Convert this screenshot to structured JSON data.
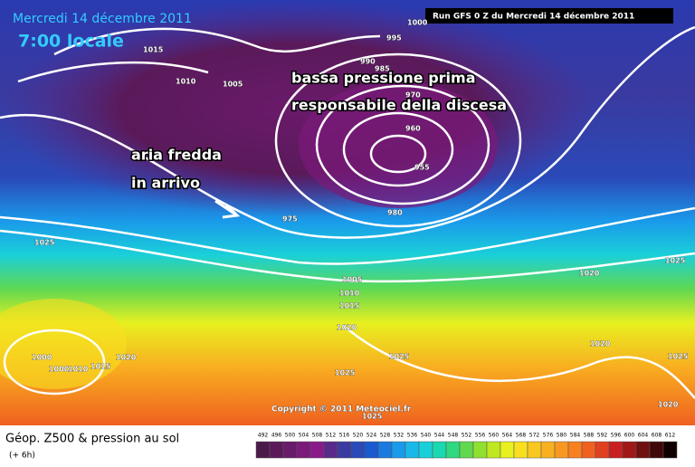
{
  "header": {
    "date": "Mercredi 14 décembre 2011",
    "time": "7:00 locale",
    "run": "Run GFS 0 Z du Mercredi 14 décembre 2011"
  },
  "annotations": [
    "bassa pressione prima",
    "responsabile della discesa",
    "aria fredda",
    "in arrivo"
  ],
  "isobar_labels": [
    "1000",
    "995",
    "1015",
    "990",
    "985",
    "1010",
    "1005",
    "970",
    "960",
    "955",
    "975",
    "980",
    "1025",
    "1005",
    "1010",
    "1015",
    "1020",
    "1020",
    "1025",
    "1020",
    "1025",
    "1000",
    "1000",
    "1010",
    "1015",
    "1020",
    "1025",
    "1025",
    "1025",
    "1020"
  ],
  "copyright": "Copyright © 2011 Meteociel.fr",
  "footer": {
    "title": "Géop. Z500 & pression au sol",
    "step": "(+ 6h)"
  },
  "legend": {
    "labels": [
      "492",
      "496",
      "500",
      "504",
      "508",
      "512",
      "516",
      "520",
      "524",
      "528",
      "532",
      "536",
      "540",
      "544",
      "548",
      "552",
      "556",
      "560",
      "564",
      "568",
      "572",
      "576",
      "580",
      "584",
      "588",
      "592",
      "596",
      "600",
      "604",
      "608",
      "612"
    ],
    "colors": [
      "#4a1a4a",
      "#5a1a5a",
      "#6a1a6a",
      "#7a1a7a",
      "#8a1a8a",
      "#5a2a8a",
      "#3a3aa0",
      "#2a4ab8",
      "#1a5ad0",
      "#1a7ae0",
      "#1a9aea",
      "#1ab8ea",
      "#1ad0d8",
      "#1ad8b0",
      "#30d880",
      "#60d850",
      "#90e030",
      "#c0e820",
      "#e8f020",
      "#f8e020",
      "#f8c820",
      "#f8b020",
      "#f89820",
      "#f88020",
      "#f06020",
      "#e04020",
      "#c82020",
      "#a01818",
      "#701010",
      "#400808",
      "#100000"
    ]
  }
}
